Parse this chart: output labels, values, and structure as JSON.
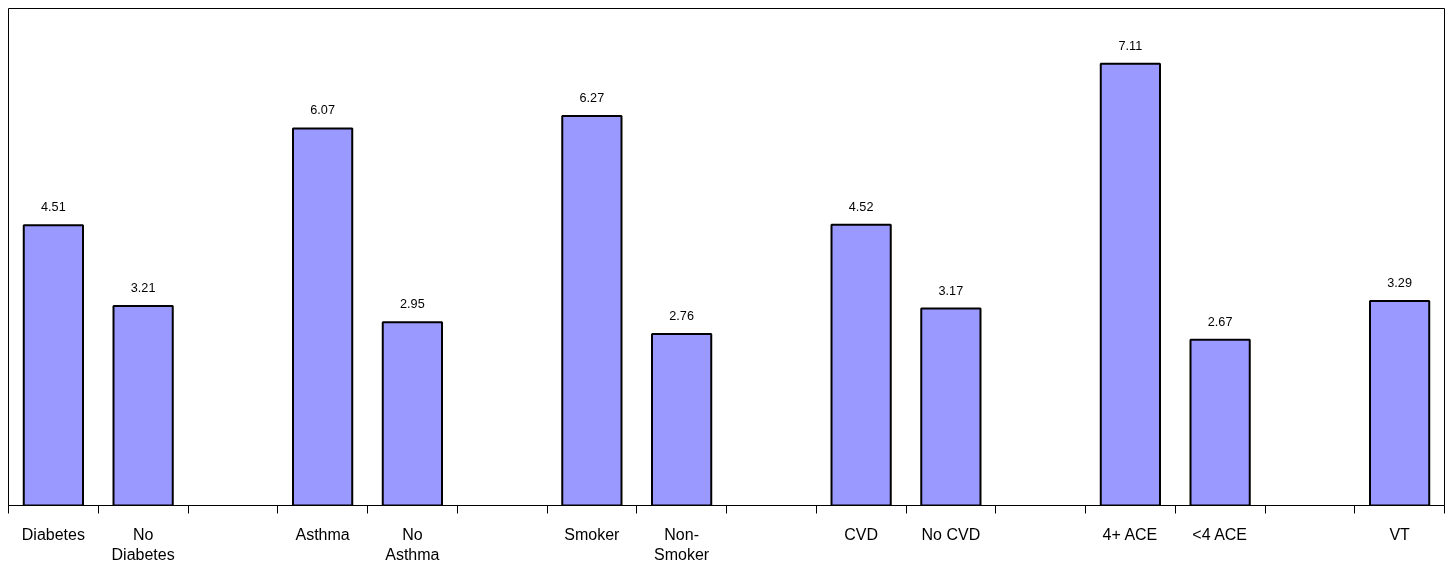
{
  "chart_data": {
    "type": "bar",
    "categories": [
      "Diabetes",
      "No\nDiabetes",
      null,
      "Asthma",
      "No\nAsthma",
      null,
      "Smoker",
      "Non-\nSmoker",
      null,
      "CVD",
      "No CVD",
      null,
      "4+ ACE",
      "<4 ACE",
      null,
      "VT"
    ],
    "values": [
      4.51,
      3.21,
      null,
      6.07,
      2.95,
      null,
      6.27,
      2.76,
      null,
      4.52,
      3.17,
      null,
      7.11,
      2.67,
      null,
      3.29
    ],
    "color": "#9999ff",
    "ylim": [
      0,
      8
    ],
    "data_labels": true
  }
}
